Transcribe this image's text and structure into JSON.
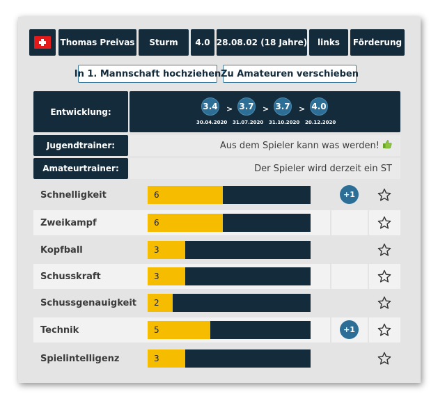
{
  "player": {
    "flag": "switzerland-flag",
    "name": "Thomas Preivas",
    "position": "Sturm",
    "rating": "4.0",
    "birth": "28.08.02 (18 Jahre)",
    "foot": "links",
    "status": "Förderung"
  },
  "actions": {
    "promote_label": "In 1. Mannschaft hochziehen",
    "amateur_label": "Zu Amateuren verschieben"
  },
  "development": {
    "label": "Entwicklung:",
    "points": [
      {
        "value": "3.4",
        "date": "30.04.2020"
      },
      {
        "value": "3.7",
        "date": "31.07.2020"
      },
      {
        "value": "3.7",
        "date": "31.10.2020"
      },
      {
        "value": "4.0",
        "date": "20.12.2020"
      }
    ],
    "separator": ">"
  },
  "youth_trainer": {
    "label": "Jugendtrainer:",
    "message": "Aus dem Spieler kann was werden!",
    "icon": "thumbs-up-icon"
  },
  "amateur_trainer": {
    "label": "Amateurtrainer:",
    "message": "Der Spieler wird derzeit ein ST"
  },
  "skill_max": 13,
  "skills": [
    {
      "name": "Schnelligkeit",
      "value": "6",
      "plus": "+1"
    },
    {
      "name": "Zweikampf",
      "value": "6",
      "plus": ""
    },
    {
      "name": "Kopfball",
      "value": "3",
      "plus": ""
    },
    {
      "name": "Schusskraft",
      "value": "3",
      "plus": ""
    },
    {
      "name": "Schussgenauigkeit",
      "value": "2",
      "plus": ""
    },
    {
      "name": "Technik",
      "value": "5",
      "plus": "+1"
    },
    {
      "name": "Spielintelligenz",
      "value": "3",
      "plus": ""
    }
  ],
  "colors": {
    "dark": "#142b3c",
    "bar_fill": "#f6bc00",
    "badge": "#2c6e96"
  }
}
